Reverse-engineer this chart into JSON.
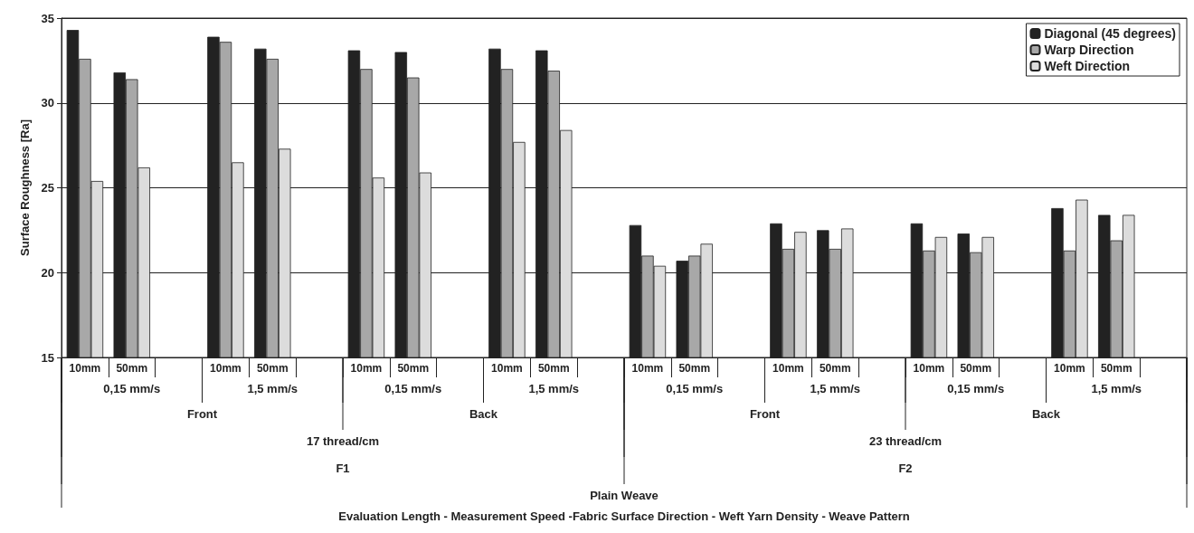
{
  "chart_data": {
    "type": "bar",
    "ylabel": "Surface Roughness [Ra]",
    "categories": [
      "10mm",
      "50mm",
      null,
      "10mm",
      "50mm",
      null,
      "10mm",
      "50mm",
      null,
      "10mm",
      "50mm",
      null,
      "10mm",
      "50mm",
      null,
      "10mm",
      "50mm",
      null,
      "10mm",
      "50mm",
      null,
      "10mm",
      "50mm",
      null
    ],
    "series": [
      {
        "name": "Diagonal (45 degrees)",
        "color": "#222222",
        "values": [
          34.3,
          31.8,
          null,
          33.9,
          33.2,
          null,
          33.1,
          33.0,
          null,
          33.2,
          33.1,
          null,
          22.8,
          20.7,
          null,
          22.9,
          22.5,
          null,
          22.9,
          22.3,
          null,
          23.8,
          23.4,
          null
        ]
      },
      {
        "name": "Warp Direction",
        "color": "#a8a8a8",
        "values": [
          32.6,
          31.4,
          null,
          33.6,
          32.6,
          null,
          32.0,
          31.5,
          null,
          32.0,
          31.9,
          null,
          21.0,
          21.0,
          null,
          21.4,
          21.4,
          null,
          21.3,
          21.2,
          null,
          21.3,
          21.9,
          null
        ]
      },
      {
        "name": "Weft Direction",
        "color": "#dcdcdc",
        "values": [
          25.4,
          26.2,
          null,
          26.5,
          27.3,
          null,
          25.6,
          25.9,
          null,
          27.7,
          28.4,
          null,
          20.4,
          21.7,
          null,
          22.4,
          22.6,
          null,
          22.1,
          22.1,
          null,
          24.3,
          23.4,
          null
        ]
      }
    ],
    "ylim": [
      15,
      35
    ],
    "yticks": [
      15,
      20,
      25,
      30,
      35
    ],
    "grid": "y",
    "legend": "top right",
    "annotations": [
      "0,15 mm/s",
      "1,5 mm/s",
      "0,15 mm/s",
      "1,5 mm/s",
      "0,15 mm/s",
      "1,5 mm/s",
      "0,15 mm/s",
      "1,5 mm/s",
      "Front",
      "Back",
      "Front",
      "Back",
      "17 thread/cm",
      "23 thread/cm",
      "F1",
      "F2",
      "Plain Weave",
      "Evaluation Length - Measurement Speed -Fabric Surface Direction - Weft Yarn Density - Weave Pattern"
    ]
  }
}
